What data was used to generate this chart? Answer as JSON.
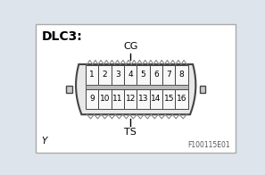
{
  "title": "DLC3:",
  "label_cg": "CG",
  "label_ts": "TS",
  "label_y": "Y",
  "label_ref": "F100115E01",
  "top_pins": [
    1,
    2,
    3,
    4,
    5,
    6,
    7,
    8
  ],
  "bottom_pins": [
    9,
    10,
    11,
    12,
    13,
    14,
    15,
    16
  ],
  "fig_bg": "#dde4ec",
  "white_bg": "#ffffff",
  "connector_fill": "#e8e8e8",
  "connector_stroke": "#444444",
  "pin_fill": "#f8f8f8",
  "pin_border": "#444444",
  "tab_fill": "#cccccc",
  "teeth_color": "#888888",
  "line_color": "#000000",
  "text_color": "#000000",
  "ref_color": "#555555"
}
